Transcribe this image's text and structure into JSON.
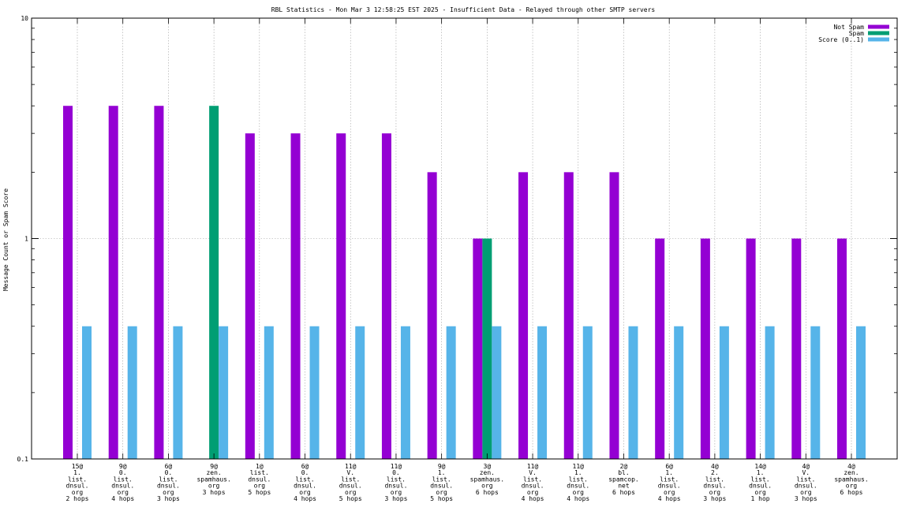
{
  "chart_data": {
    "type": "bar",
    "title": "RBL Statistics - Mon Mar  3 12:58:25 EST 2025 - Insufficient Data - Relayed through other SMTP servers",
    "xlabel": "",
    "ylabel": "Message Count or Spam Score",
    "yscale": "log",
    "ylim": [
      0.1,
      10
    ],
    "yticks": [
      "0.1",
      "1",
      "10"
    ],
    "grid": true,
    "legend_position": "top-right",
    "categories": [
      [
        "15@",
        "1.",
        "list.",
        "dnsul.",
        "org",
        "2 hops"
      ],
      [
        "9@",
        "0.",
        "list.",
        "dnsul.",
        "org",
        "4 hops"
      ],
      [
        "6@",
        "0.",
        "list.",
        "dnsul.",
        "org",
        "3 hops"
      ],
      [
        "9@",
        "zen.",
        "spamhaus.",
        "org",
        "3 hops"
      ],
      [
        "1@",
        "list.",
        "dnsul.",
        "org",
        "5 hops"
      ],
      [
        "6@",
        "0.",
        "list.",
        "dnsul.",
        "org",
        "4 hops"
      ],
      [
        "11@",
        "V.",
        "list.",
        "dnsul.",
        "org",
        "5 hops"
      ],
      [
        "11@",
        "0.",
        "list.",
        "dnsul.",
        "org",
        "3 hops"
      ],
      [
        "9@",
        "1.",
        "list.",
        "dnsul.",
        "org",
        "5 hops"
      ],
      [
        "3@",
        "zen.",
        "spamhaus.",
        "org",
        "6 hops"
      ],
      [
        "11@",
        "V.",
        "list.",
        "dnsul.",
        "org",
        "4 hops"
      ],
      [
        "11@",
        "1.",
        "list.",
        "dnsul.",
        "org",
        "4 hops"
      ],
      [
        "2@",
        "bl.",
        "spamcop.",
        "net",
        "6 hops"
      ],
      [
        "6@",
        "1.",
        "list.",
        "dnsul.",
        "org",
        "4 hops"
      ],
      [
        "4@",
        "2.",
        "list.",
        "dnsul.",
        "org",
        "3 hops"
      ],
      [
        "14@",
        "1.",
        "list.",
        "dnsul.",
        "org",
        "1 hop"
      ],
      [
        "4@",
        "V.",
        "list.",
        "dnsul.",
        "org",
        "3 hops"
      ],
      [
        "4@",
        "zen.",
        "spamhaus.",
        "org",
        "6 hops"
      ]
    ],
    "series": [
      {
        "name": "Not Spam",
        "color": "#9400d3",
        "values": [
          4,
          4,
          4,
          null,
          3,
          3,
          3,
          3,
          2,
          1,
          2,
          2,
          2,
          1,
          1,
          1,
          1,
          1
        ]
      },
      {
        "name": "Spam",
        "color": "#009e73",
        "values": [
          null,
          null,
          null,
          4,
          null,
          null,
          null,
          null,
          null,
          1,
          null,
          null,
          null,
          null,
          null,
          null,
          null,
          null
        ]
      },
      {
        "name": "Score (0..1)",
        "color": "#56b4e9",
        "values": [
          0.4,
          0.4,
          0.4,
          0.4,
          0.4,
          0.4,
          0.4,
          0.4,
          0.4,
          0.4,
          0.4,
          0.4,
          0.4,
          0.4,
          0.4,
          0.4,
          0.4,
          0.4
        ]
      }
    ]
  }
}
